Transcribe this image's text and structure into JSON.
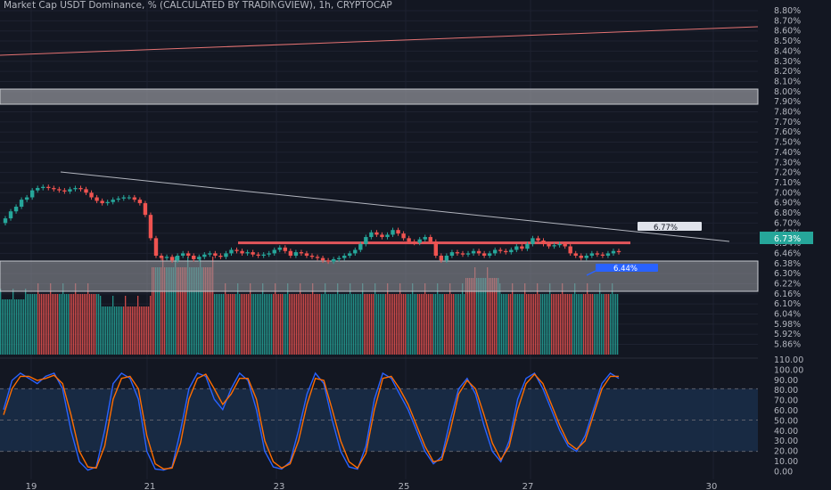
{
  "header": {
    "title": "Market Cap USDT Dominance, % (CALCULATED BY TRADINGVIEW), 1h, CRYPTOCAP"
  },
  "colors": {
    "background": "#131722",
    "grid": "#1e2230",
    "up": "#26a69a",
    "down": "#ef5350",
    "zone": "#8d8f96",
    "resistance": "#e2555b",
    "trend_top": "#e57373",
    "trend_line": "#b2b5be",
    "k_line": "#2962ff",
    "d_line": "#ff6d00",
    "osc_band": "#1e3a5f",
    "price_tag": "#26a69a",
    "label_white": "#e0e3eb",
    "label_blue": "#2962ff"
  },
  "chart_data": [
    {
      "type": "candlestick",
      "title": "Market Cap USDT Dominance, % (CALCULATED BY TRADINGVIEW), 1h, CRYPTOCAP",
      "price_axis_ticks": [
        "8.80%",
        "8.70%",
        "8.60%",
        "8.50%",
        "8.40%",
        "8.30%",
        "8.20%",
        "8.10%",
        "8.00%",
        "7.90%",
        "7.80%",
        "7.70%",
        "7.60%",
        "7.50%",
        "7.40%",
        "7.30%",
        "7.20%",
        "7.10%",
        "7.00%",
        "6.90%",
        "6.80%",
        "6.70%",
        "6.62%",
        "6.54%",
        "6.46%",
        "6.38%",
        "6.30%",
        "6.22%",
        "6.16%",
        "6.10%",
        "6.04%",
        "5.98%",
        "5.92%",
        "5.86%"
      ],
      "time_axis_ticks": [
        "19",
        "21",
        "23",
        "25",
        "27",
        "30"
      ],
      "price_tag": "6.73%",
      "annotations": [
        {
          "text": "6.77%",
          "style": "white-box"
        },
        {
          "text": "6.44%",
          "style": "blue-box"
        }
      ],
      "zones": [
        {
          "name": "upper-zone",
          "from": 7.91,
          "to": 8.0
        },
        {
          "name": "lower-zone",
          "from": 6.32,
          "to": 6.6
        }
      ],
      "resistance_level": 6.81,
      "close_series": [
        7.02,
        7.08,
        7.12,
        7.18,
        7.2,
        7.26,
        7.28,
        7.29,
        7.28,
        7.27,
        7.26,
        7.25,
        7.27,
        7.28,
        7.27,
        7.24,
        7.2,
        7.17,
        7.15,
        7.16,
        7.18,
        7.19,
        7.2,
        7.2,
        7.18,
        7.15,
        7.05,
        6.85,
        6.7,
        6.68,
        6.69,
        6.66,
        6.7,
        6.72,
        6.7,
        6.67,
        6.69,
        6.71,
        6.72,
        6.7,
        6.69,
        6.72,
        6.75,
        6.74,
        6.72,
        6.73,
        6.71,
        6.7,
        6.71,
        6.72,
        6.75,
        6.77,
        6.74,
        6.7,
        6.73,
        6.72,
        6.7,
        6.69,
        6.68,
        6.66,
        6.65,
        6.67,
        6.68,
        6.7,
        6.72,
        6.75,
        6.8,
        6.86,
        6.9,
        6.88,
        6.86,
        6.88,
        6.92,
        6.89,
        6.85,
        6.82,
        6.81,
        6.84,
        6.86,
        6.82,
        6.7,
        6.66,
        6.7,
        6.73,
        6.72,
        6.71,
        6.72,
        6.74,
        6.72,
        6.7,
        6.72,
        6.75,
        6.74,
        6.73,
        6.75,
        6.78,
        6.76,
        6.8,
        6.85,
        6.83,
        6.8,
        6.78,
        6.79,
        6.8,
        6.78,
        6.72,
        6.7,
        6.68,
        6.7,
        6.72,
        6.71,
        6.7,
        6.72,
        6.74,
        6.73
      ],
      "volume_axis_ticks": [
        "6.22%",
        "6.16%",
        "6.10%"
      ]
    },
    {
      "type": "line",
      "name": "stochastic",
      "y_axis_ticks": [
        "110.00",
        "100.00",
        "90.00",
        "80.00",
        "70.00",
        "60.00",
        "50.00",
        "40.00",
        "30.00",
        "20.00",
        "10.00",
        "0.00"
      ],
      "band": [
        20,
        80
      ],
      "midline": 50,
      "series": [
        {
          "values": [
            60,
            88,
            95,
            90,
            85,
            92,
            95,
            80,
            40,
            10,
            2,
            5,
            40,
            85,
            95,
            90,
            70,
            20,
            3,
            2,
            5,
            40,
            80,
            95,
            92,
            70,
            60,
            80,
            95,
            88,
            60,
            20,
            5,
            3,
            10,
            40,
            75,
            95,
            85,
            50,
            20,
            5,
            3,
            25,
            70,
            95,
            90,
            75,
            60,
            40,
            20,
            8,
            15,
            50,
            80,
            90,
            75,
            45,
            20,
            10,
            30,
            70,
            90,
            95,
            80,
            60,
            40,
            25,
            20,
            35,
            60,
            85,
            95,
            90
          ]
        },
        {
          "values": [
            55,
            80,
            92,
            92,
            88,
            90,
            93,
            85,
            55,
            20,
            5,
            4,
            25,
            70,
            90,
            92,
            80,
            35,
            8,
            3,
            4,
            28,
            70,
            90,
            94,
            80,
            65,
            75,
            90,
            90,
            70,
            30,
            10,
            4,
            8,
            30,
            65,
            90,
            88,
            60,
            30,
            10,
            4,
            18,
            60,
            90,
            92,
            80,
            65,
            45,
            25,
            10,
            12,
            40,
            75,
            88,
            80,
            55,
            28,
            12,
            25,
            60,
            85,
            94,
            85,
            65,
            45,
            28,
            22,
            30,
            55,
            80,
            92,
            92
          ]
        }
      ]
    }
  ]
}
